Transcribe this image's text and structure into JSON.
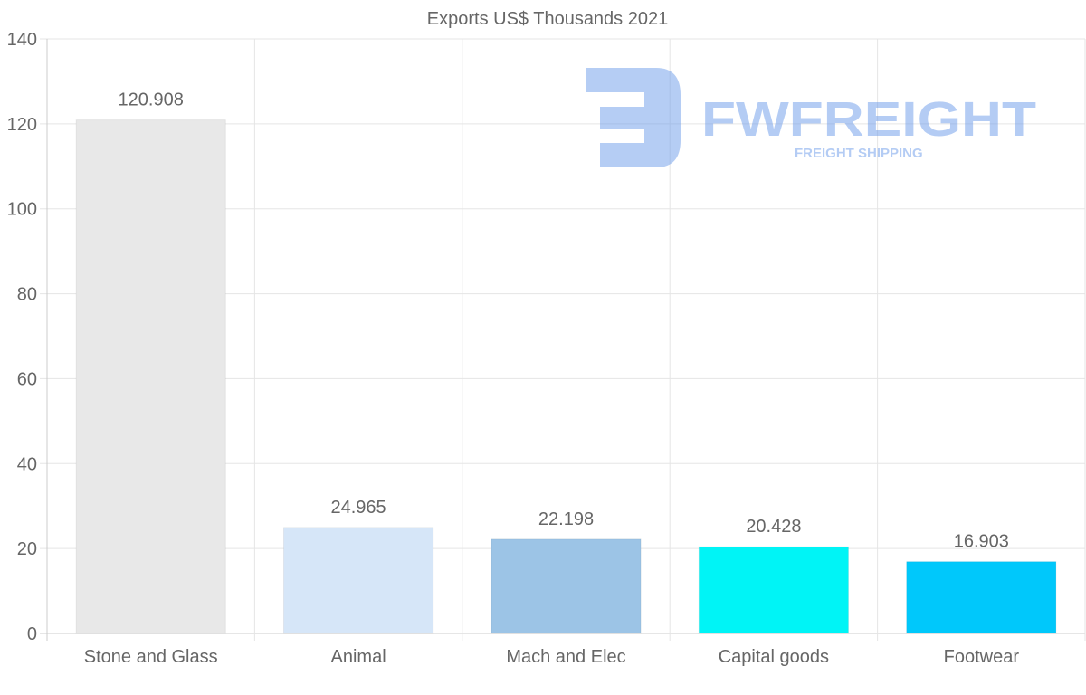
{
  "chart_data": {
    "type": "bar",
    "title": "Exports US$ Thousands 2021",
    "xlabel": "",
    "ylabel": "",
    "categories": [
      "Stone and Glass",
      "Animal",
      "Mach and Elec",
      "Capital goods",
      "Footwear"
    ],
    "values": [
      120.908,
      24.965,
      22.198,
      20.428,
      16.903
    ],
    "data_labels": [
      "120.908",
      "24.965",
      "22.198",
      "20.428",
      "16.903"
    ],
    "bar_colors": [
      "#e8e8e8",
      "#d6e6f8",
      "#9cc4e6",
      "#00f4f6",
      "#00c8fb"
    ],
    "ylim": [
      0,
      140
    ],
    "yticks": [
      0,
      20,
      40,
      60,
      80,
      100,
      120,
      140
    ],
    "grid": true,
    "legend": "none"
  },
  "watermark": {
    "brand": "FWFREIGHT",
    "tagline": "FREIGHT SHIPPING",
    "color": "#6c9bea"
  },
  "colors": {
    "text": "#666666",
    "grid": "#e5e5e5",
    "axis": "#cccccc"
  }
}
